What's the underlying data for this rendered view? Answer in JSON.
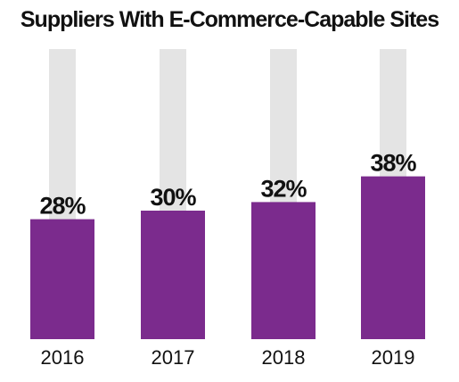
{
  "chart_data": {
    "type": "bar",
    "title": "Suppliers With E-Commerce-Capable Sites",
    "categories": [
      "2016",
      "2017",
      "2018",
      "2019"
    ],
    "values": [
      28,
      30,
      32,
      38
    ],
    "value_labels": [
      "28%",
      "30%",
      "32%",
      "38%"
    ],
    "ylim": [
      0,
      100
    ],
    "grid": false,
    "legend": "none",
    "bar_color": "#7b2b8d",
    "track_color": "#e4e4e4"
  }
}
